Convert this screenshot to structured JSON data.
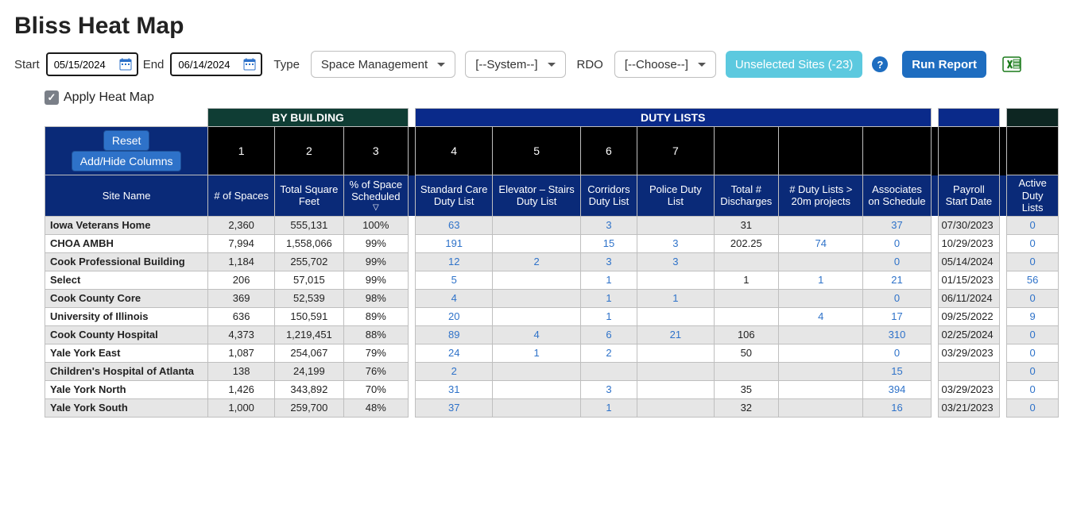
{
  "title": "Bliss Heat Map",
  "filters": {
    "start_label": "Start",
    "end_label": "End",
    "start_value": "05/15/2024",
    "end_value": "06/14/2024",
    "type_label": "Type",
    "type_value": "Space Management",
    "system_value": "[--System--]",
    "rdo_label": "RDO",
    "rdo_value": "[--Choose--]",
    "unselected_sites_label": "Unselected Sites (-23)",
    "help_char": "?",
    "run_label": "Run Report"
  },
  "apply_heat_map_label": "Apply Heat Map",
  "group_headers": {
    "by_building": "BY BUILDING",
    "duty_lists": "DUTY LISTS"
  },
  "buttons": {
    "reset": "Reset",
    "add_hide": "Add/Hide Columns"
  },
  "col_numbers": [
    "1",
    "2",
    "3",
    "4",
    "5",
    "6",
    "7"
  ],
  "columns": {
    "site": "Site Name",
    "c1": "# of Spaces",
    "c2": "Total\nSquare Feet",
    "c3_line1": "% of Space",
    "c3_line2": "Scheduled",
    "c3_sort": "▽",
    "c4": "Standard Care\nDuty List",
    "c5": "Elevator – Stairs\nDuty List",
    "c6": "Corridors\nDuty List",
    "c7": "Police Duty List",
    "c8": "Total #\nDischarges",
    "c9": "# Duty Lists\n> 20m projects",
    "c10": "Associates\non Schedule",
    "c11": "Payroll\nStart Date",
    "c12": "Active\nDuty Lists"
  },
  "rows": [
    {
      "site": "Iowa Veterans Home",
      "spaces": "2,360",
      "sqft": "555,131",
      "pct": "100%",
      "c4": "63",
      "c5": "",
      "c6": "3",
      "c7": "",
      "c8": "31",
      "c9": "",
      "c10": "37",
      "c11": "07/30/2023",
      "c12": "0"
    },
    {
      "site": "CHOA AMBH",
      "spaces": "7,994",
      "sqft": "1,558,066",
      "pct": "99%",
      "c4": "191",
      "c5": "",
      "c6": "15",
      "c7": "3",
      "c8": "202.25",
      "c9": "74",
      "c10": "0",
      "c11": "10/29/2023",
      "c12": "0"
    },
    {
      "site": "Cook Professional Building",
      "spaces": "1,184",
      "sqft": "255,702",
      "pct": "99%",
      "c4": "12",
      "c5": "2",
      "c6": "3",
      "c7": "3",
      "c8": "",
      "c9": "",
      "c10": "0",
      "c11": "05/14/2024",
      "c12": "0"
    },
    {
      "site": "Select",
      "spaces": "206",
      "sqft": "57,015",
      "pct": "99%",
      "c4": "5",
      "c5": "",
      "c6": "1",
      "c7": "",
      "c8": "1",
      "c9": "1",
      "c10": "21",
      "c11": "01/15/2023",
      "c12": "56"
    },
    {
      "site": "Cook County Core",
      "spaces": "369",
      "sqft": "52,539",
      "pct": "98%",
      "c4": "4",
      "c5": "",
      "c6": "1",
      "c7": "1",
      "c8": "",
      "c9": "",
      "c10": "0",
      "c11": "06/11/2024",
      "c12": "0"
    },
    {
      "site": "University of Illinois",
      "spaces": "636",
      "sqft": "150,591",
      "pct": "89%",
      "c4": "20",
      "c5": "",
      "c6": "1",
      "c7": "",
      "c8": "",
      "c9": "4",
      "c10": "17",
      "c11": "09/25/2022",
      "c12": "9"
    },
    {
      "site": "Cook County Hospital",
      "spaces": "4,373",
      "sqft": "1,219,451",
      "pct": "88%",
      "c4": "89",
      "c5": "4",
      "c6": "6",
      "c7": "21",
      "c8": "106",
      "c9": "",
      "c10": "310",
      "c11": "02/25/2024",
      "c12": "0"
    },
    {
      "site": "Yale York East",
      "spaces": "1,087",
      "sqft": "254,067",
      "pct": "79%",
      "c4": "24",
      "c5": "1",
      "c6": "2",
      "c7": "",
      "c8": "50",
      "c9": "",
      "c10": "0",
      "c11": "03/29/2023",
      "c12": "0"
    },
    {
      "site": "Children's Hospital of Atlanta",
      "spaces": "138",
      "sqft": "24,199",
      "pct": "76%",
      "c4": "2",
      "c5": "",
      "c6": "",
      "c7": "",
      "c8": "",
      "c9": "",
      "c10": "15",
      "c11": "",
      "c12": "0"
    },
    {
      "site": "Yale York North",
      "spaces": "1,426",
      "sqft": "343,892",
      "pct": "70%",
      "c4": "31",
      "c5": "",
      "c6": "3",
      "c7": "",
      "c8": "35",
      "c9": "",
      "c10": "394",
      "c11": "03/29/2023",
      "c12": "0"
    },
    {
      "site": "Yale York South",
      "spaces": "1,000",
      "sqft": "259,700",
      "pct": "48%",
      "c4": "37",
      "c5": "",
      "c6": "1",
      "c7": "",
      "c8": "32",
      "c9": "",
      "c10": "16",
      "c11": "03/21/2023",
      "c12": "0"
    }
  ],
  "colors": {
    "link": "#2e72c9",
    "header_navy": "#0a2a78",
    "group_green": "#0f3d34",
    "group_blue": "#0a2a8a"
  }
}
